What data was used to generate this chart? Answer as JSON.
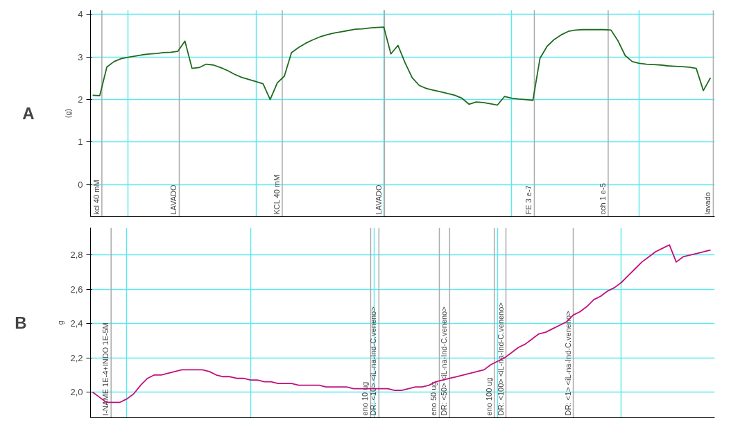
{
  "chart_data": [
    {
      "type": "line",
      "ylabel": "(g)",
      "tick_labels": "y",
      "grid": true,
      "line_style": "solid",
      "marker": "none",
      "ylim": [
        -0.75,
        4.1
      ],
      "yticks": [
        0,
        1,
        2,
        3,
        4
      ],
      "categories": [
        null,
        null,
        null,
        null,
        null,
        null,
        null,
        null,
        null,
        null,
        null,
        null,
        null,
        null,
        null,
        null,
        null,
        null,
        null,
        null,
        null,
        null,
        null,
        null,
        null,
        null,
        null,
        null,
        null,
        null,
        null,
        null,
        null,
        null,
        null,
        null,
        null,
        null,
        null,
        null,
        null,
        null,
        null,
        null,
        null,
        null,
        null,
        null,
        null,
        null,
        null,
        null,
        null,
        null,
        null,
        null,
        null,
        null,
        null,
        null,
        null,
        null,
        null,
        null,
        null,
        null,
        null,
        null,
        null,
        null,
        null,
        null,
        null,
        null,
        null,
        null,
        null,
        null,
        null,
        null,
        null,
        null,
        null,
        null,
        null,
        null,
        null,
        null
      ],
      "series": [
        {
          "color": "#1e6b1e",
          "values": [
            2.1,
            2.09,
            2.76,
            2.89,
            2.96,
            2.99,
            3.02,
            3.05,
            3.07,
            3.08,
            3.1,
            3.11,
            3.13,
            3.37,
            2.73,
            2.75,
            2.83,
            2.81,
            2.75,
            2.68,
            2.59,
            2.52,
            2.47,
            2.42,
            2.37,
            2.0,
            2.39,
            2.55,
            3.1,
            3.22,
            3.32,
            3.4,
            3.47,
            3.52,
            3.56,
            3.59,
            3.62,
            3.65,
            3.66,
            3.68,
            3.69,
            3.7,
            3.07,
            3.27,
            2.86,
            2.51,
            2.33,
            2.26,
            2.22,
            2.18,
            2.14,
            2.1,
            2.03,
            1.89,
            1.94,
            1.93,
            1.9,
            1.87,
            2.07,
            2.03,
            2.01,
            2.0,
            1.98,
            2.97,
            3.25,
            3.41,
            3.52,
            3.6,
            3.63,
            3.64,
            3.64,
            3.64,
            3.64,
            3.63,
            3.37,
            3.03,
            2.89,
            2.85,
            2.83,
            2.82,
            2.81,
            2.79,
            2.78,
            2.77,
            2.76,
            2.73,
            2.21,
            2.51
          ]
        }
      ],
      "annotations": [
        "A",
        "kcl 40 mM",
        "LAVADO",
        "KCL 40 mM",
        "LAVADO",
        "FE 3 e-7",
        "cch 1 e-5",
        "lavado"
      ]
    },
    {
      "type": "line",
      "ylabel": "g",
      "tick_labels": "y",
      "grid": true,
      "line_style": "solid",
      "marker": "none",
      "ylim": [
        1.85,
        2.96
      ],
      "yticks": [
        {
          "value": 2.0,
          "label": "2,0"
        },
        {
          "value": 2.2,
          "label": "2,2"
        },
        {
          "value": 2.4,
          "label": "2,4"
        },
        {
          "value": 2.6,
          "label": "2,6"
        },
        {
          "value": 2.8,
          "label": "2,8"
        }
      ],
      "categories": [
        null,
        null,
        null,
        null,
        null,
        null,
        null,
        null,
        null,
        null,
        null,
        null,
        null,
        null,
        null,
        null,
        null,
        null,
        null,
        null,
        null,
        null,
        null,
        null,
        null,
        null,
        null,
        null,
        null,
        null,
        null,
        null,
        null,
        null,
        null,
        null,
        null,
        null,
        null,
        null,
        null,
        null,
        null,
        null,
        null,
        null,
        null,
        null,
        null,
        null,
        null,
        null,
        null,
        null,
        null,
        null,
        null,
        null,
        null,
        null,
        null,
        null,
        null,
        null,
        null,
        null,
        null,
        null,
        null,
        null,
        null,
        null,
        null,
        null,
        null,
        null,
        null,
        null,
        null,
        null,
        null,
        null,
        null,
        null,
        null,
        null,
        null,
        null,
        null,
        null,
        null
      ],
      "series": [
        {
          "color": "#c0107a",
          "values": [
            2.0,
            1.97,
            1.94,
            1.94,
            1.94,
            1.96,
            1.99,
            2.04,
            2.08,
            2.1,
            2.1,
            2.11,
            2.12,
            2.13,
            2.13,
            2.13,
            2.13,
            2.12,
            2.1,
            2.09,
            2.09,
            2.08,
            2.08,
            2.07,
            2.07,
            2.06,
            2.06,
            2.05,
            2.05,
            2.05,
            2.04,
            2.04,
            2.04,
            2.04,
            2.03,
            2.03,
            2.03,
            2.03,
            2.02,
            2.02,
            2.02,
            2.02,
            2.02,
            2.02,
            2.01,
            2.01,
            2.02,
            2.03,
            2.03,
            2.04,
            2.06,
            2.07,
            2.08,
            2.09,
            2.1,
            2.11,
            2.12,
            2.13,
            2.16,
            2.18,
            2.2,
            2.23,
            2.26,
            2.28,
            2.31,
            2.34,
            2.35,
            2.37,
            2.39,
            2.41,
            2.45,
            2.47,
            2.5,
            2.54,
            2.56,
            2.59,
            2.61,
            2.64,
            2.68,
            2.72,
            2.76,
            2.79,
            2.82,
            2.84,
            2.86,
            2.76,
            2.79,
            2.8,
            2.81,
            2.82,
            2.83
          ]
        }
      ],
      "annotations": [
        "B",
        "I-NAME 1E-4+INDO 1E-5M",
        "eno 10 ug",
        "DR: <10> <iL-na-Ind-C.veneno>",
        "eno 50 ug",
        "DR: <50> <iL-na-Ind-C.veneno>",
        "eno 100 ug",
        "DR: <100> <iL-na-Ind-C.veneno>",
        "DR: <1> <iL-na-Ind-C.veneno>"
      ]
    }
  ]
}
